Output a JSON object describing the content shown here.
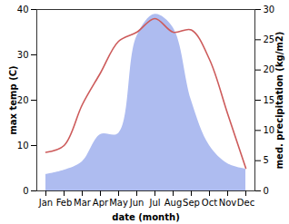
{
  "chart_data": {
    "type": "line",
    "x_label": "date (month)",
    "categories": [
      "Jan",
      "Feb",
      "Mar",
      "Apr",
      "May",
      "Jun",
      "Jul",
      "Aug",
      "Sep",
      "Oct",
      "Nov",
      "Dec"
    ],
    "series": [
      {
        "name": "max temp (C)",
        "type": "line",
        "color": "#cd5b5b",
        "values": [
          8.5,
          10,
          19,
          26,
          33,
          35,
          38,
          35,
          35.5,
          29,
          17,
          5
        ]
      },
      {
        "name": "med. precipitation (kg/m2)",
        "type": "area",
        "color": "#aebcf0",
        "axis": "y2",
        "values": [
          2.7,
          3.4,
          4.8,
          9.3,
          9.5,
          25.5,
          29.2,
          27,
          15,
          7.5,
          4.5,
          3.6
        ]
      }
    ],
    "ylim": [
      0,
      40
    ],
    "yticks": [
      0,
      10,
      20,
      30,
      40
    ],
    "y2lim": [
      0,
      30
    ],
    "y2ticks": [
      0,
      5,
      10,
      15,
      20,
      25,
      30
    ],
    "grid": false
  }
}
